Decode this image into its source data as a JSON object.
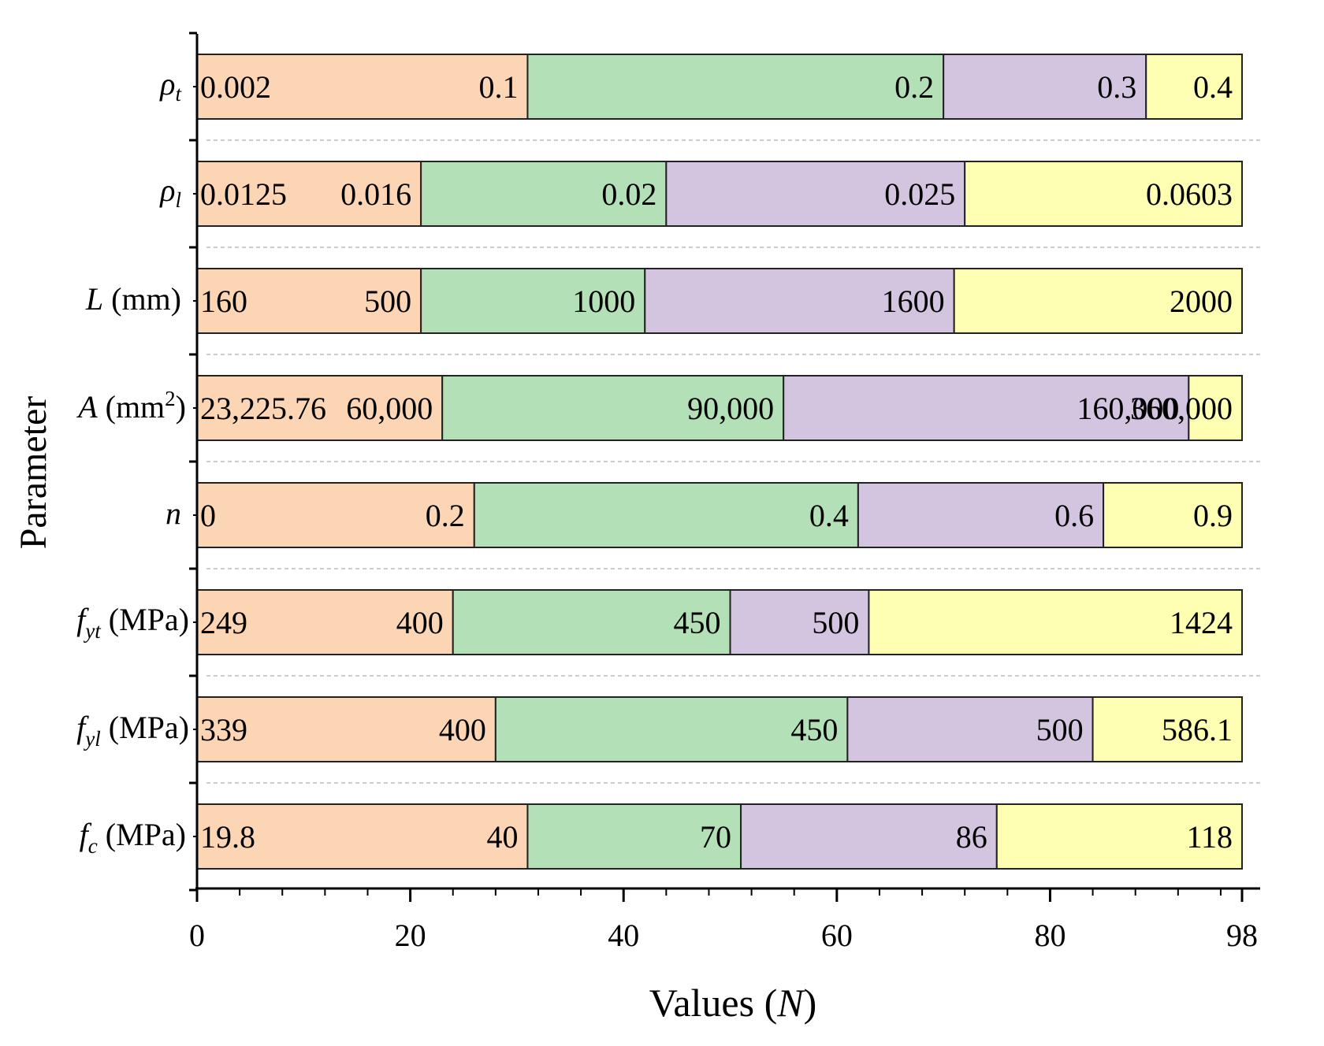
{
  "chart_data": {
    "type": "bar",
    "stacked": true,
    "orientation": "horizontal",
    "xlabel": "Values (N)",
    "ylabel": "Parameter",
    "xlim": [
      0,
      98
    ],
    "xticks": [
      "0",
      "20",
      "40",
      "60",
      "80",
      "98"
    ],
    "colors": [
      "#fcd5b5",
      "#b3e0b6",
      "#d3c4e0",
      "#ffffb3"
    ],
    "parameters": [
      {
        "name": "ρt",
        "segments": [
          {
            "start": 0,
            "end": 31,
            "left_label": "0.002",
            "right_label": "0.1"
          },
          {
            "start": 31,
            "end": 70,
            "right_label": "0.2"
          },
          {
            "start": 70,
            "end": 89,
            "right_label": "0.3"
          },
          {
            "start": 89,
            "end": 98,
            "right_label": "0.4"
          }
        ]
      },
      {
        "name": "ρl",
        "segments": [
          {
            "start": 0,
            "end": 21,
            "left_label": "0.0125",
            "right_label": "0.016"
          },
          {
            "start": 21,
            "end": 44,
            "right_label": "0.02"
          },
          {
            "start": 44,
            "end": 72,
            "right_label": "0.025"
          },
          {
            "start": 72,
            "end": 98,
            "right_label": "0.0603"
          }
        ]
      },
      {
        "name": "L (mm)",
        "segments": [
          {
            "start": 0,
            "end": 21,
            "left_label": "160",
            "right_label": "500"
          },
          {
            "start": 21,
            "end": 42,
            "right_label": "1000"
          },
          {
            "start": 42,
            "end": 71,
            "right_label": "1600"
          },
          {
            "start": 71,
            "end": 98,
            "right_label": "2000"
          }
        ]
      },
      {
        "name": "A (mm2)",
        "segments": [
          {
            "start": 0,
            "end": 23,
            "left_label": "23,225.76",
            "right_label": "60,000"
          },
          {
            "start": 23,
            "end": 55,
            "right_label": "90,000"
          },
          {
            "start": 55,
            "end": 93,
            "right_label": "160,000"
          },
          {
            "start": 93,
            "end": 98,
            "right_label": "360,000"
          }
        ]
      },
      {
        "name": "n",
        "segments": [
          {
            "start": 0,
            "end": 26,
            "left_label": "0",
            "right_label": "0.2"
          },
          {
            "start": 26,
            "end": 62,
            "right_label": "0.4"
          },
          {
            "start": 62,
            "end": 85,
            "right_label": "0.6"
          },
          {
            "start": 85,
            "end": 98,
            "right_label": "0.9"
          }
        ]
      },
      {
        "name": "fyt (MPa)",
        "segments": [
          {
            "start": 0,
            "end": 24,
            "left_label": "249",
            "right_label": "400"
          },
          {
            "start": 24,
            "end": 50,
            "right_label": "450"
          },
          {
            "start": 50,
            "end": 63,
            "right_label": "500"
          },
          {
            "start": 63,
            "end": 98,
            "right_label": "1424"
          }
        ]
      },
      {
        "name": "fyl (MPa)",
        "segments": [
          {
            "start": 0,
            "end": 28,
            "left_label": "339",
            "right_label": "400"
          },
          {
            "start": 28,
            "end": 61,
            "right_label": "450"
          },
          {
            "start": 61,
            "end": 84,
            "right_label": "500"
          },
          {
            "start": 84,
            "end": 98,
            "right_label": "586.1"
          }
        ]
      },
      {
        "name": "fc (MPa)",
        "segments": [
          {
            "start": 0,
            "end": 31,
            "left_label": "19.8",
            "right_label": "40"
          },
          {
            "start": 31,
            "end": 51,
            "right_label": "70"
          },
          {
            "start": 51,
            "end": 75,
            "right_label": "86"
          },
          {
            "start": 75,
            "end": 98,
            "right_label": "118"
          }
        ]
      }
    ]
  }
}
